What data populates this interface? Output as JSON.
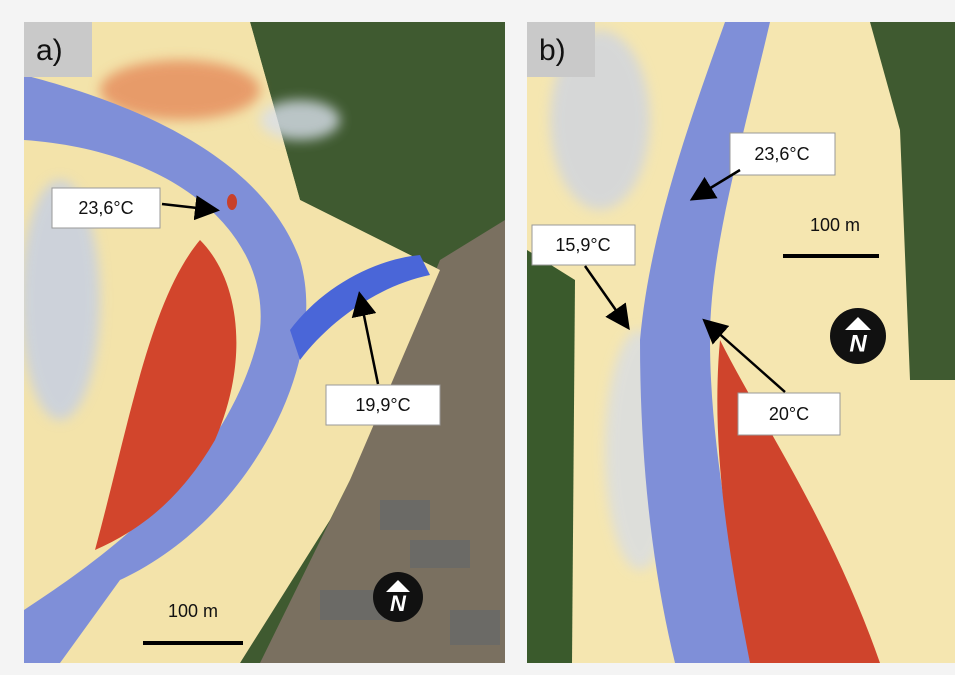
{
  "panels": [
    {
      "label": "a)",
      "annotations": [
        "23,6°C",
        "19,9°C"
      ],
      "scale_bar": "100 m",
      "north": "N"
    },
    {
      "label": "b)",
      "annotations": [
        "23,6°C",
        "15,9°C",
        "20°C"
      ],
      "scale_bar": "100 m",
      "north": "N"
    }
  ]
}
